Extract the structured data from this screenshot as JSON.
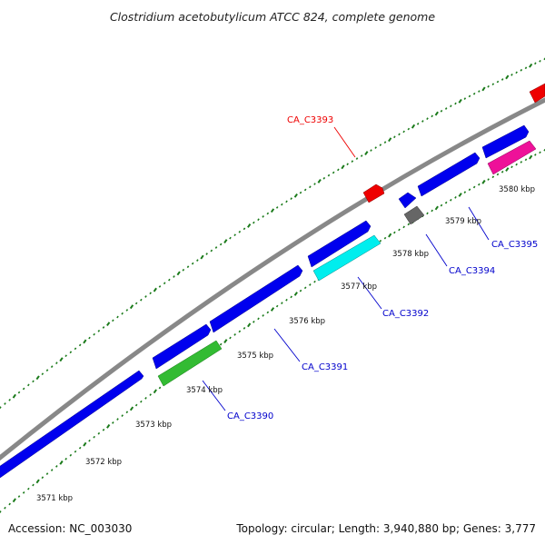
{
  "title": "Clostridium acetobutylicum ATCC 824, complete genome",
  "footer": {
    "accession": "Accession: NC_003030",
    "summary": "Topology: circular; Length: 3,940,880 bp; Genes: 3,777"
  },
  "colors": {
    "backbone": "#888888",
    "tick": "#1a7a1a",
    "forward_gene": "#0000ee",
    "label_blue": "#0000cc",
    "label_red": "#ee0000",
    "red_gene": "#ee0000",
    "green_gene": "#33bb33",
    "cyan_gene": "#00eeee",
    "grey_gene": "#666666",
    "magenta_gene": "#ee1199"
  },
  "scale_labels": [
    "3571 kbp",
    "3572 kbp",
    "3573 kbp",
    "3574 kbp",
    "3575 kbp",
    "3576 kbp",
    "3577 kbp",
    "3578 kbp",
    "3579 kbp",
    "3580 kbp"
  ],
  "gene_labels": [
    {
      "name": "CA_C3390",
      "color": "blue"
    },
    {
      "name": "CA_C3391",
      "color": "blue"
    },
    {
      "name": "CA_C3392",
      "color": "blue"
    },
    {
      "name": "CA_C3393",
      "color": "red"
    },
    {
      "name": "CA_C3394",
      "color": "blue"
    },
    {
      "name": "CA_C3395",
      "color": "blue"
    }
  ]
}
